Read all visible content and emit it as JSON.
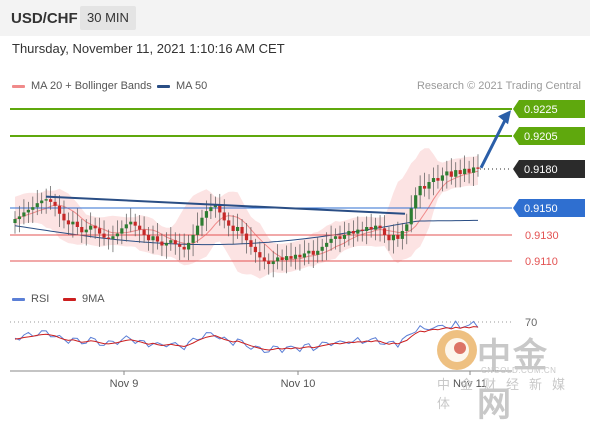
{
  "header": {
    "symbol": "USD/CHF",
    "timeframe": "30 MIN",
    "datetime": "Thursday, November 11, 2021 1:10:16 AM CET"
  },
  "legend": [
    {
      "label": "MA 20 + Bollinger Bands",
      "color": "#f08a8a"
    },
    {
      "label": "MA 50",
      "color": "#2a4e85"
    }
  ],
  "credit": "Research © 2021 Trading Central",
  "indicator_legend": [
    {
      "label": "RSI",
      "color": "#5b7fd6"
    },
    {
      "label": "9MA",
      "color": "#cc1f1f"
    }
  ],
  "watermark": {
    "brand": "中金网",
    "url": "CNGOLD.COM.CN",
    "tagline": "中金财经新媒体"
  },
  "colors": {
    "up_candle": "#2e7d32",
    "down_candle": "#c62828",
    "target_green": "#5fa80d",
    "current_price": "#2b2b2b",
    "pivot_blue": "#2f6fd0",
    "support_red": "#e35353",
    "trend_arrow": "#2a5ea8"
  },
  "chart_data": {
    "type": "candlestick",
    "symbol": "USD/CHF",
    "interval": "30 MIN",
    "x_ticks": [
      "Nov 9",
      "Nov 10",
      "Nov 11"
    ],
    "price_levels": [
      {
        "value": "0.9225",
        "kind": "target",
        "color": "#5fa80d"
      },
      {
        "value": "0.9205",
        "kind": "target",
        "color": "#5fa80d"
      },
      {
        "value": "0.9180",
        "kind": "current",
        "color": "#2b2b2b"
      },
      {
        "value": "0.9150",
        "kind": "pivot",
        "color": "#2f6fd0"
      },
      {
        "value": "0.9130",
        "kind": "support",
        "color": "#e35353"
      },
      {
        "value": "0.9110",
        "kind": "support",
        "color": "#e35353"
      }
    ],
    "y_range": [
      0.9105,
      0.9232
    ],
    "ohlc_close": [
      0.9142,
      0.9144,
      0.9147,
      0.9149,
      0.9151,
      0.9154,
      0.9156,
      0.9157,
      0.9155,
      0.9152,
      0.9146,
      0.9141,
      0.9138,
      0.914,
      0.9136,
      0.9132,
      0.9134,
      0.9137,
      0.9135,
      0.9131,
      0.9128,
      0.9127,
      0.9129,
      0.9131,
      0.9135,
      0.9138,
      0.914,
      0.9137,
      0.9134,
      0.913,
      0.9126,
      0.9129,
      0.9125,
      0.9122,
      0.9124,
      0.9126,
      0.9123,
      0.9121,
      0.9119,
      0.9124,
      0.913,
      0.9137,
      0.9143,
      0.9148,
      0.9151,
      0.9153,
      0.9147,
      0.9141,
      0.9137,
      0.9133,
      0.9136,
      0.9131,
      0.9126,
      0.9121,
      0.9117,
      0.9113,
      0.911,
      0.9108,
      0.911,
      0.9113,
      0.9111,
      0.9114,
      0.9112,
      0.9115,
      0.9113,
      0.9116,
      0.9118,
      0.9115,
      0.9118,
      0.9121,
      0.9124,
      0.9127,
      0.9129,
      0.9127,
      0.913,
      0.9133,
      0.9131,
      0.9134,
      0.9133,
      0.9136,
      0.9134,
      0.9137,
      0.9135,
      0.913,
      0.9126,
      0.913,
      0.9127,
      0.9133,
      0.9138,
      0.915,
      0.916,
      0.9167,
      0.9165,
      0.917,
      0.9173,
      0.9171,
      0.9175,
      0.9178,
      0.9174,
      0.9179,
      0.9176,
      0.918,
      0.9177,
      0.9181,
      0.918
    ],
    "ma50_start": 0.9137,
    "ma50_end": 0.9141,
    "resistance_trendline": {
      "from": 0.9159,
      "to": 0.9146
    },
    "rsi_level": 70
  }
}
